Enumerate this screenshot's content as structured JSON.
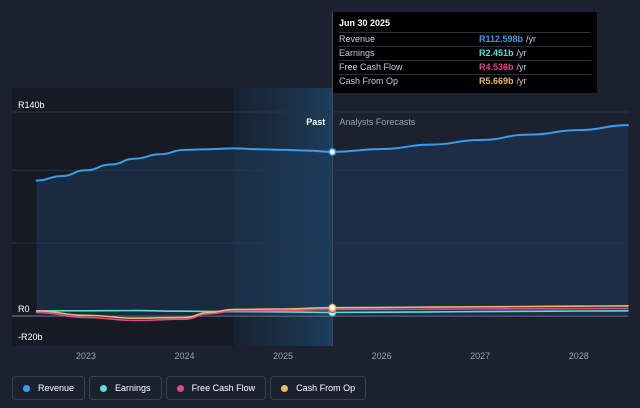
{
  "chart_data": {
    "type": "line",
    "past_label": "Past",
    "forecast_label": "Analysts Forecasts",
    "y_tick_labels": [
      "R140b",
      "R0",
      "-R20b"
    ],
    "ylim": [
      -20,
      140
    ],
    "x_tick_labels": [
      "2023",
      "2024",
      "2025",
      "2026",
      "2027",
      "2028"
    ],
    "x_ticks": [
      2023,
      2024,
      2025,
      2026,
      2027,
      2028
    ],
    "xlim": [
      2022.25,
      2028.5
    ],
    "divider_x": 2025.5,
    "highlight_start": 2024.5,
    "series": [
      {
        "name": "Revenue",
        "color": "#3b9cea",
        "x": [
          2022.5,
          2022.75,
          2023.0,
          2023.25,
          2023.5,
          2023.75,
          2024.0,
          2024.25,
          2024.5,
          2024.75,
          2025.0,
          2025.25,
          2025.5,
          2026.0,
          2026.5,
          2027.0,
          2027.5,
          2028.0,
          2028.5
        ],
        "y": [
          93,
          96,
          100,
          104,
          108,
          111,
          114,
          114.5,
          115,
          114.5,
          114,
          113.5,
          112.6,
          114.6,
          117.6,
          120.8,
          124.5,
          127.6,
          131
        ]
      },
      {
        "name": "Earnings",
        "color": "#58e0d4",
        "x": [
          2022.5,
          2023.0,
          2023.5,
          2024.0,
          2024.5,
          2025.0,
          2025.5,
          2026.0,
          2026.5,
          2027.0,
          2027.5,
          2028.0,
          2028.5
        ],
        "y": [
          3.5,
          3.6,
          3.7,
          3.3,
          3.0,
          2.8,
          2.45,
          2.6,
          2.8,
          3.0,
          3.2,
          3.4,
          3.6
        ]
      },
      {
        "name": "Free Cash Flow",
        "color": "#e0488f",
        "x": [
          2022.5,
          2023.0,
          2023.5,
          2024.0,
          2024.25,
          2024.5,
          2025.0,
          2025.5,
          2026.0,
          2026.5,
          2027.0,
          2027.5,
          2028.0,
          2028.5
        ],
        "y": [
          2.5,
          -1.0,
          -3.0,
          -2.2,
          1.5,
          3.5,
          3.8,
          4.54,
          4.6,
          4.7,
          4.8,
          5.0,
          5.1,
          5.3
        ]
      },
      {
        "name": "Cash From Op",
        "color": "#e9b86a",
        "x": [
          2022.5,
          2023.0,
          2023.5,
          2024.0,
          2024.25,
          2024.5,
          2025.0,
          2025.5,
          2026.0,
          2026.5,
          2027.0,
          2027.5,
          2028.0,
          2028.5
        ],
        "y": [
          3.5,
          0.5,
          -1.5,
          -1.0,
          2.5,
          4.5,
          4.8,
          5.67,
          5.9,
          6.1,
          6.3,
          6.5,
          6.7,
          7.0
        ]
      }
    ]
  },
  "tooltip": {
    "date": "Jun 30 2025",
    "rows": [
      {
        "label": "Revenue",
        "value": "R112.598b",
        "unit": "/yr",
        "color": "#3b9cea"
      },
      {
        "label": "Earnings",
        "value": "R2.451b",
        "unit": "/yr",
        "color": "#58e0d4"
      },
      {
        "label": "Free Cash Flow",
        "value": "R4.536b",
        "unit": "/yr",
        "color": "#e0488f"
      },
      {
        "label": "Cash From Op",
        "value": "R5.669b",
        "unit": "/yr",
        "color": "#e9b86a"
      }
    ]
  },
  "legend": [
    {
      "label": "Revenue",
      "color": "#3b9cea"
    },
    {
      "label": "Earnings",
      "color": "#58e0d4"
    },
    {
      "label": "Free Cash Flow",
      "color": "#e0488f"
    },
    {
      "label": "Cash From Op",
      "color": "#e9b86a"
    }
  ]
}
